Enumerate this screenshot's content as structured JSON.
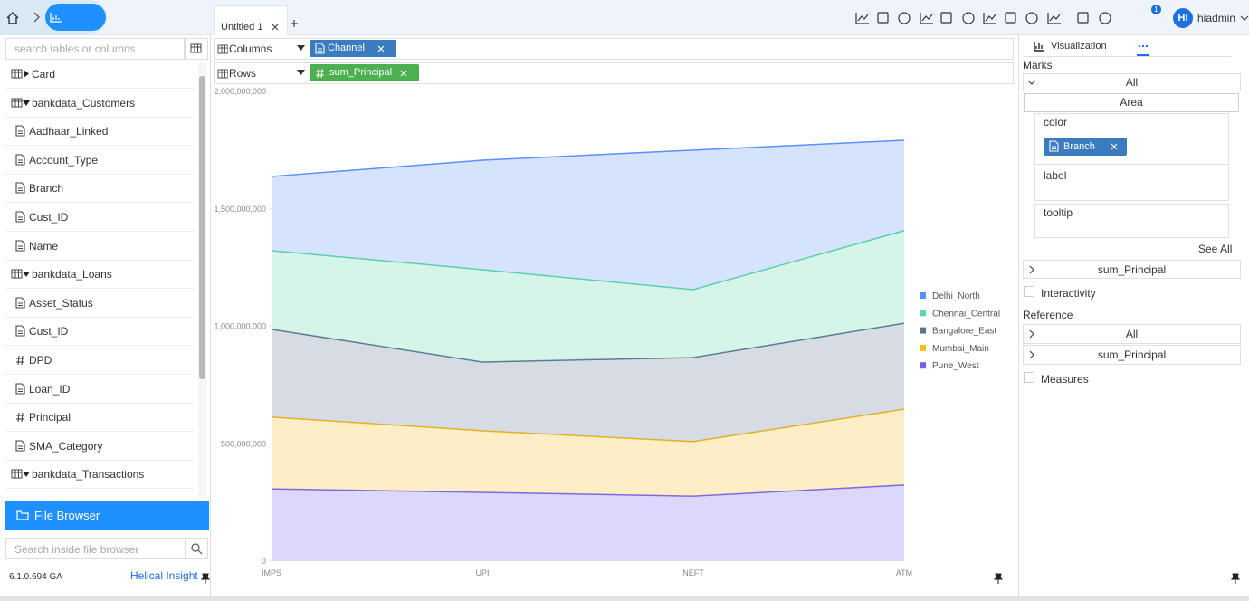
{
  "top_bar": {
    "tab": "Untitled 1",
    "user_initials": "HI",
    "user": "hiadmin",
    "notifications": 1
  },
  "left_panel": {
    "search_placeholder": "search tables or columns",
    "items": [
      {
        "label": "Card",
        "kind": "folder-closed"
      },
      {
        "label": "bankdata_Customers",
        "kind": "table-open"
      },
      {
        "label": "Aadhaar_Linked",
        "kind": "dimension"
      },
      {
        "label": "Account_Type",
        "kind": "dimension"
      },
      {
        "label": "Branch",
        "kind": "dimension"
      },
      {
        "label": "Cust_ID",
        "kind": "dimension"
      },
      {
        "label": "Name",
        "kind": "dimension"
      },
      {
        "label": "bankdata_Loans",
        "kind": "table-open"
      },
      {
        "label": "Asset_Status",
        "kind": "dimension"
      },
      {
        "label": "Cust_ID",
        "kind": "dimension"
      },
      {
        "label": "DPD",
        "kind": "measure"
      },
      {
        "label": "Loan_ID",
        "kind": "dimension"
      },
      {
        "label": "Principal",
        "kind": "measure"
      },
      {
        "label": "SMA_Category",
        "kind": "dimension"
      },
      {
        "label": "bankdata_Transactions",
        "kind": "table-open"
      }
    ],
    "file_browser": "File Browser",
    "file_search_placeholder": "Search inside file browser",
    "version": "6.1.0.694 GA",
    "brand": "Helical Insight"
  },
  "shelves": {
    "columns": {
      "label": "Columns",
      "field": "Channel"
    },
    "rows": {
      "label": "Rows",
      "field": "sum_Principal"
    }
  },
  "chart_data": {
    "type": "area",
    "stacked": true,
    "categories": [
      "IMPS",
      "UPI",
      "NEFT",
      "ATM"
    ],
    "series": [
      {
        "name": "Delhi_North",
        "color": "#5b8ff9",
        "values": [
          316000000,
          466000000,
          594000000,
          385000000
        ]
      },
      {
        "name": "Chennai_Central",
        "color": "#5ad8a6",
        "values": [
          335000000,
          393000000,
          289000000,
          394000000
        ]
      },
      {
        "name": "Bangalore_East",
        "color": "#5d7092",
        "values": [
          374000000,
          293000000,
          358000000,
          366000000
        ]
      },
      {
        "name": "Mumbai_Main",
        "color": "#f6bd16",
        "values": [
          305000000,
          262000000,
          232000000,
          323000000
        ]
      },
      {
        "name": "Pune_West",
        "color": "#6f5ef9",
        "values": [
          308000000,
          293000000,
          277000000,
          324000000
        ]
      }
    ],
    "ylim": [
      0,
      2000000000
    ],
    "yticks": [
      0,
      {
        "value": 500000000,
        "label": "500,000,000"
      },
      {
        "value": 1000000000,
        "label": "1,000,000,000"
      },
      {
        "value": 1500000000,
        "label": "1,500,000,000"
      },
      {
        "value": 2000000000,
        "label": "2,000,000,000"
      }
    ],
    "legend": "right"
  },
  "right_panel": {
    "tab": "Visualization",
    "marks": "Marks",
    "all": "All",
    "mark_type": "Area",
    "color": "color",
    "color_field": "Branch",
    "label": "label",
    "tooltip": "tooltip",
    "see_all": "See All",
    "measure": "sum_Principal",
    "interactivity": "Interactivity",
    "reference": "Reference",
    "reference_all": "All",
    "reference_measure": "sum_Principal",
    "measures": "Measures"
  }
}
